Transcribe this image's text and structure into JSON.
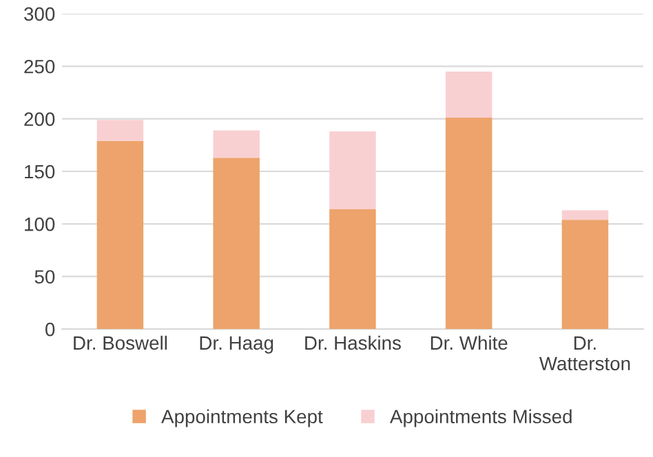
{
  "chart_data": {
    "type": "bar",
    "stacked": true,
    "categories": [
      "Dr. Boswell",
      "Dr. Haag",
      "Dr. Haskins",
      "Dr. White",
      "Dr.\nWatterston"
    ],
    "series": [
      {
        "name": "Appointments Kept",
        "color": "#eda36b",
        "values": [
          179,
          163,
          114,
          201,
          104
        ]
      },
      {
        "name": "Appointments Missed",
        "color": "#f9d0d2",
        "values": [
          20,
          26,
          74,
          44,
          9
        ]
      }
    ],
    "ylim": [
      0,
      300
    ],
    "yticks": [
      0,
      50,
      100,
      150,
      200,
      250,
      300
    ],
    "grid": "y",
    "legend": "bottom"
  }
}
